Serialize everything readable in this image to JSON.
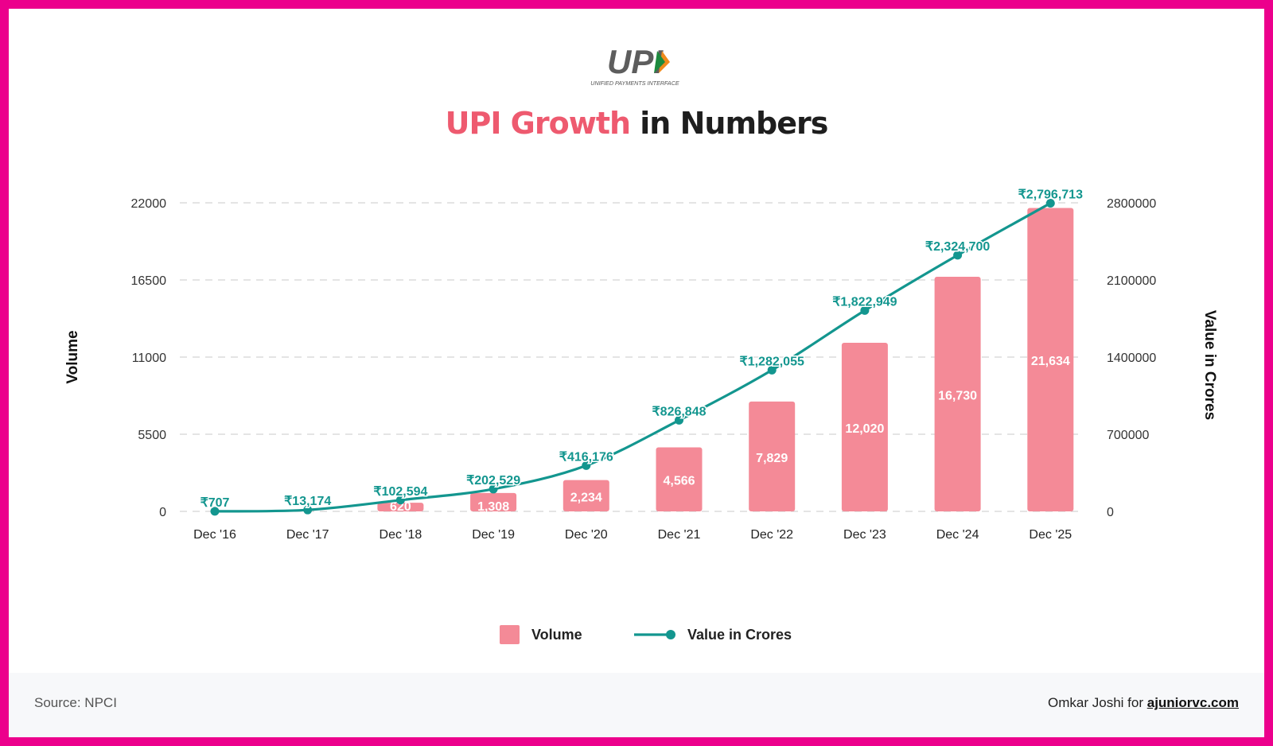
{
  "logo": {
    "wordmark": "UPI",
    "tagline": "UNIFIED PAYMENTS INTERFACE"
  },
  "header": {
    "title_accent": "UPI Growth",
    "title_rest": " in Numbers"
  },
  "colors": {
    "bar": "#f48a97",
    "line": "#13968f",
    "accent": "#ee5a6f",
    "border": "#ec008c"
  },
  "chart_data": {
    "type": "bar+line",
    "categories": [
      "Dec '16",
      "Dec '17",
      "Dec '18",
      "Dec '19",
      "Dec '20",
      "Dec '21",
      "Dec '22",
      "Dec '23",
      "Dec '24",
      "Dec '25"
    ],
    "series": [
      {
        "name": "Volume",
        "type": "bar",
        "axis": "left",
        "values": [
          0,
          0,
          620,
          1308,
          2234,
          4566,
          7829,
          12020,
          16730,
          21634
        ],
        "labels": [
          "",
          "",
          "620",
          "1,308",
          "2,234",
          "4,566",
          "7,829",
          "12,020",
          "16,730",
          "21,634"
        ]
      },
      {
        "name": "Value in Crores",
        "type": "line",
        "axis": "right",
        "values": [
          707,
          13174,
          102594,
          202529,
          416176,
          826848,
          1282055,
          1822949,
          2324700,
          2796713
        ],
        "labels": [
          "₹707",
          "₹13,174",
          "₹102,594",
          "₹202,529",
          "₹416,176",
          "₹826,848",
          "₹1,282,055",
          "₹1,822,949",
          "₹2,324,700",
          "₹2,796,713"
        ]
      }
    ],
    "ylabel_left": "Volume",
    "ylabel_right": "Value in Crores",
    "ylim_left": [
      0,
      22000
    ],
    "ylim_right": [
      0,
      2800000
    ],
    "yticks_left": [
      "0",
      "5500",
      "11000",
      "16500",
      "22000"
    ],
    "yticks_right": [
      "0",
      "700000",
      "1400000",
      "2100000",
      "2800000"
    ],
    "grid": true,
    "legend": [
      "Volume",
      "Value in Crores"
    ]
  },
  "footer": {
    "source": "Source: NPCI",
    "credit_prefix": "Omkar Joshi for ",
    "credit_link": "ajuniorvc.com"
  }
}
